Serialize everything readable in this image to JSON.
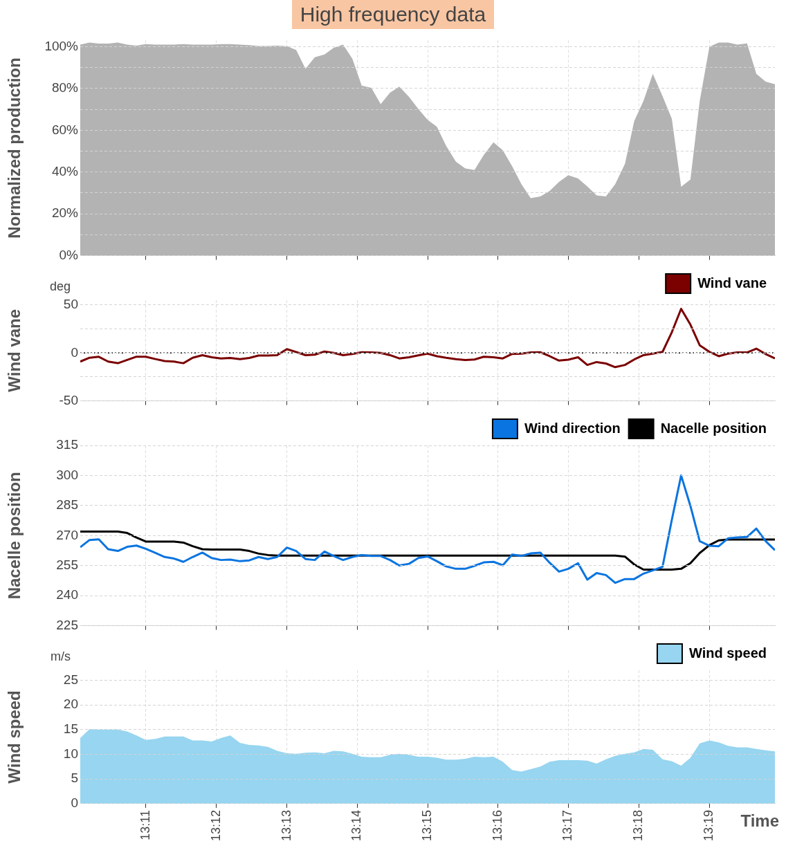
{
  "chart_data": [
    {
      "type": "area",
      "title": "High frequency data",
      "ylabel": "Normalized production",
      "x": [
        13.1678,
        13.17,
        13.1722,
        13.1744,
        13.1767,
        13.1789,
        13.1811,
        13.1833,
        13.1856,
        13.1878,
        13.19,
        13.1922,
        13.1944,
        13.1967,
        13.1989,
        13.2011,
        13.2033,
        13.2056,
        13.2078,
        13.21,
        13.2122,
        13.2144,
        13.2167,
        13.2189,
        13.2211,
        13.2233,
        13.2256,
        13.2278,
        13.23,
        13.2322,
        13.2344,
        13.2367,
        13.2389,
        13.2411,
        13.2433,
        13.2456,
        13.2478,
        13.25,
        13.2522,
        13.2544,
        13.2567,
        13.2589,
        13.2611,
        13.2633,
        13.2656,
        13.2678,
        13.27,
        13.2722,
        13.2744,
        13.2767,
        13.2789,
        13.2811,
        13.2833,
        13.2856,
        13.2878,
        13.29,
        13.2922,
        13.2944,
        13.2967,
        13.2989,
        13.3011,
        13.3033,
        13.3056,
        13.3078,
        13.31,
        13.3122,
        13.3144,
        13.3167,
        13.3189,
        13.3211,
        13.3233,
        13.3256,
        13.3278,
        13.33,
        13.3322
      ],
      "series": [
        {
          "color": "#b3b3b3",
          "values": [
            101,
            102,
            101.5,
            101.5,
            102,
            101,
            100.5,
            101.2,
            101,
            101,
            101,
            101.2,
            101,
            101,
            101,
            101.2,
            101.2,
            101,
            100.7,
            100.3,
            100.3,
            100.5,
            100.2,
            98.4,
            89.4,
            94.9,
            96.3,
            99.5,
            101,
            94.2,
            81.4,
            80.3,
            72.5,
            78,
            80.9,
            76,
            70.2,
            65,
            61.7,
            52.5,
            45,
            41.7,
            41,
            48.2,
            54.2,
            50.4,
            42.8,
            34.2,
            27.5,
            28.3,
            31,
            35.3,
            38.5,
            36.9,
            33.1,
            28.8,
            28.3,
            34.2,
            43.9,
            64.4,
            74.1,
            87,
            76.3,
            65.5,
            33,
            36.4,
            74,
            100,
            102,
            102,
            101,
            101.6,
            87,
            83.3,
            82
          ]
        }
      ],
      "xlim": [
        13.1678,
        13.3322
      ],
      "xticks": [
        {
          "value": 13.1833,
          "label": null
        },
        {
          "value": 13.2,
          "label": null
        },
        {
          "value": 13.2167,
          "label": null
        },
        {
          "value": 13.2333,
          "label": null
        },
        {
          "value": 13.25,
          "label": null
        },
        {
          "value": 13.2667,
          "label": null
        },
        {
          "value": 13.2833,
          "label": null
        },
        {
          "value": 13.3,
          "label": null
        },
        {
          "value": 13.3167,
          "label": null
        }
      ],
      "ylim": [
        0,
        103
      ],
      "yticks": [
        {
          "value": 0,
          "label": "0%"
        },
        {
          "value": 10,
          "label": null
        },
        {
          "value": 20,
          "label": "20%"
        },
        {
          "value": 30,
          "label": null
        },
        {
          "value": 40,
          "label": "40%"
        },
        {
          "value": 50,
          "label": null
        },
        {
          "value": 60,
          "label": "60%"
        },
        {
          "value": 70,
          "label": null
        },
        {
          "value": 80,
          "label": "80%"
        },
        {
          "value": 90,
          "label": null
        },
        {
          "value": 100,
          "label": "100%"
        }
      ],
      "grid": true,
      "tick_labels": "y"
    },
    {
      "type": "line",
      "ylabel": "Wind vane",
      "annotations": [
        "deg"
      ],
      "x": [
        13.1678,
        13.17,
        13.1722,
        13.1744,
        13.1767,
        13.1789,
        13.1811,
        13.1833,
        13.1856,
        13.1878,
        13.19,
        13.1922,
        13.1944,
        13.1967,
        13.1989,
        13.2011,
        13.2033,
        13.2056,
        13.2078,
        13.21,
        13.2122,
        13.2144,
        13.2167,
        13.2189,
        13.2211,
        13.2233,
        13.2256,
        13.2278,
        13.23,
        13.2322,
        13.2344,
        13.2367,
        13.2389,
        13.2411,
        13.2433,
        13.2456,
        13.2478,
        13.25,
        13.2522,
        13.2544,
        13.2567,
        13.2589,
        13.2611,
        13.2633,
        13.2656,
        13.2678,
        13.27,
        13.2722,
        13.2744,
        13.2767,
        13.2789,
        13.2811,
        13.2833,
        13.2856,
        13.2878,
        13.29,
        13.2922,
        13.2944,
        13.2967,
        13.2989,
        13.3011,
        13.3033,
        13.3056,
        13.3078,
        13.31,
        13.3122,
        13.3144,
        13.3167,
        13.3189,
        13.3211,
        13.3233,
        13.3256,
        13.3278,
        13.33,
        13.3322
      ],
      "series": [
        {
          "name": "Wind vane",
          "color": "#7b0000",
          "values": [
            -9,
            -5,
            -4,
            -9,
            -10.7,
            -7.3,
            -3.9,
            -4,
            -6.4,
            -8.4,
            -9,
            -10.7,
            -5,
            -2.3,
            -4.5,
            -5.7,
            -5.2,
            -6.4,
            -5.2,
            -2.7,
            -2.7,
            -2.3,
            4,
            1,
            -2.3,
            -1.8,
            1.5,
            0,
            -2.3,
            -1,
            0.7,
            0.5,
            0,
            -2.3,
            -5.7,
            -4.5,
            -2.5,
            -0.7,
            -3.4,
            -5,
            -6.4,
            -7.3,
            -6.8,
            -4,
            -4.5,
            -5.7,
            -1,
            -0.7,
            0.5,
            0.7,
            -3.4,
            -8,
            -7,
            -4.5,
            -12.5,
            -9.5,
            -11,
            -14.8,
            -12.5,
            -6.8,
            -2.3,
            -0.7,
            1.1,
            21.6,
            46,
            29.5,
            8,
            1.1,
            -3.4,
            -0.7,
            0.5,
            0.5,
            4.5,
            -1.1,
            -5.7
          ]
        }
      ],
      "xlim": [
        13.1678,
        13.3322
      ],
      "xticks": [
        {
          "value": 13.1833,
          "label": null
        },
        {
          "value": 13.2,
          "label": null
        },
        {
          "value": 13.2167,
          "label": null
        },
        {
          "value": 13.2333,
          "label": null
        },
        {
          "value": 13.25,
          "label": null
        },
        {
          "value": 13.2667,
          "label": null
        },
        {
          "value": 13.2833,
          "label": null
        },
        {
          "value": 13.3,
          "label": null
        },
        {
          "value": 13.3167,
          "label": null
        }
      ],
      "ylim": [
        -50,
        55
      ],
      "yticks": [
        -50,
        {
          "value": -25,
          "label": null
        },
        0,
        {
          "value": 25,
          "label": null
        },
        50
      ],
      "ref_lines": [
        {
          "axis": "y",
          "value": 0,
          "color": "#000000",
          "line_style": "dotted"
        }
      ],
      "grid": true,
      "legend": "top right",
      "tick_labels": "y"
    },
    {
      "type": "line",
      "ylabel": "Nacelle position",
      "x": [
        13.1678,
        13.17,
        13.1722,
        13.1744,
        13.1767,
        13.1789,
        13.1811,
        13.1833,
        13.1856,
        13.1878,
        13.19,
        13.1922,
        13.1944,
        13.1967,
        13.1989,
        13.2011,
        13.2033,
        13.2056,
        13.2078,
        13.21,
        13.2122,
        13.2144,
        13.2167,
        13.2189,
        13.2211,
        13.2233,
        13.2256,
        13.2278,
        13.23,
        13.2322,
        13.2344,
        13.2367,
        13.2389,
        13.2411,
        13.2433,
        13.2456,
        13.2478,
        13.25,
        13.2522,
        13.2544,
        13.2567,
        13.2589,
        13.2611,
        13.2633,
        13.2656,
        13.2678,
        13.27,
        13.2722,
        13.2744,
        13.2767,
        13.2789,
        13.2811,
        13.2833,
        13.2856,
        13.2878,
        13.29,
        13.2922,
        13.2944,
        13.2967,
        13.2989,
        13.3011,
        13.3033,
        13.3056,
        13.3078,
        13.31,
        13.3122,
        13.3144,
        13.3167,
        13.3189,
        13.3211,
        13.3233,
        13.3256,
        13.3278,
        13.33,
        13.3322
      ],
      "series": [
        {
          "name": "Wind direction",
          "color": "#0a74e0",
          "values": [
            264.2,
            267.8,
            268.1,
            263.2,
            262.3,
            264.4,
            265,
            263.4,
            261.3,
            259.3,
            258.5,
            256.9,
            259.3,
            261.5,
            258.8,
            257.8,
            258,
            257.2,
            257.6,
            259.3,
            258.3,
            259.3,
            264,
            262.3,
            258.3,
            257.8,
            262,
            259.8,
            257.8,
            259.3,
            260.3,
            259.8,
            259.8,
            257.8,
            255.1,
            255.9,
            258.8,
            259.6,
            257.2,
            254.6,
            253.4,
            253.4,
            254.9,
            256.6,
            256.9,
            255.2,
            260.5,
            259.8,
            261.1,
            261.5,
            256.4,
            252,
            253.4,
            256.2,
            248,
            251.3,
            250.3,
            246.4,
            248.3,
            248.3,
            251,
            252.6,
            254.4,
            277.9,
            300,
            284.8,
            267.2,
            264.9,
            264.7,
            268.6,
            269.1,
            269.3,
            273.5,
            267.2,
            262.7
          ]
        },
        {
          "name": "Nacelle position",
          "color": "#000000",
          "values": [
            272,
            272,
            272,
            272,
            272,
            271.3,
            269,
            267,
            267,
            267,
            267,
            266.5,
            264.7,
            263.2,
            263,
            263,
            263,
            263,
            262.3,
            261,
            260.3,
            260,
            260,
            260,
            260,
            260,
            260,
            260,
            260,
            260,
            260,
            260,
            260,
            260,
            260,
            260,
            260,
            260,
            260,
            260,
            260,
            260,
            260,
            260,
            260,
            260,
            260,
            260,
            260,
            260,
            260,
            260,
            260,
            260,
            260,
            260,
            260,
            260,
            259.5,
            255.6,
            253,
            253,
            253,
            253,
            253.4,
            256.2,
            261.3,
            265.2,
            267.6,
            268,
            268,
            268,
            268,
            268,
            268
          ]
        }
      ],
      "xlim": [
        13.1678,
        13.3322
      ],
      "xticks": [
        {
          "value": 13.1833,
          "label": null
        },
        {
          "value": 13.2,
          "label": null
        },
        {
          "value": 13.2167,
          "label": null
        },
        {
          "value": 13.2333,
          "label": null
        },
        {
          "value": 13.25,
          "label": null
        },
        {
          "value": 13.2667,
          "label": null
        },
        {
          "value": 13.2833,
          "label": null
        },
        {
          "value": 13.3,
          "label": null
        },
        {
          "value": 13.3167,
          "label": null
        }
      ],
      "ylim": [
        225,
        315
      ],
      "yticks": [
        225,
        240,
        255,
        270,
        285,
        300,
        315
      ],
      "grid": true,
      "legend": "top right",
      "tick_labels": "y"
    },
    {
      "type": "area",
      "ylabel": "Wind speed",
      "xlabel": "Time",
      "annotations": [
        "m/s"
      ],
      "x": [
        13.1678,
        13.17,
        13.1722,
        13.1744,
        13.1767,
        13.1789,
        13.1811,
        13.1833,
        13.1856,
        13.1878,
        13.19,
        13.1922,
        13.1944,
        13.1967,
        13.1989,
        13.2011,
        13.2033,
        13.2056,
        13.2078,
        13.21,
        13.2122,
        13.2144,
        13.2167,
        13.2189,
        13.2211,
        13.2233,
        13.2256,
        13.2278,
        13.23,
        13.2322,
        13.2344,
        13.2367,
        13.2389,
        13.2411,
        13.2433,
        13.2456,
        13.2478,
        13.25,
        13.2522,
        13.2544,
        13.2567,
        13.2589,
        13.2611,
        13.2633,
        13.2656,
        13.2678,
        13.27,
        13.2722,
        13.2744,
        13.2767,
        13.2789,
        13.2811,
        13.2833,
        13.2856,
        13.2878,
        13.29,
        13.2922,
        13.2944,
        13.2967,
        13.2989,
        13.3011,
        13.3033,
        13.3056,
        13.3078,
        13.31,
        13.3122,
        13.3144,
        13.3167,
        13.3189,
        13.3211,
        13.3233,
        13.3256,
        13.3278,
        13.33,
        13.3322
      ],
      "series": [
        {
          "name": "Wind speed",
          "color": "#97d5f0",
          "values": [
            13.3,
            15.1,
            15,
            15,
            15,
            14.6,
            13.8,
            12.9,
            13.1,
            13.6,
            13.6,
            13.6,
            12.8,
            12.8,
            12.6,
            13.3,
            13.8,
            12.3,
            11.9,
            11.8,
            11.5,
            10.7,
            10.2,
            10.1,
            10.3,
            10.4,
            10.2,
            10.7,
            10.6,
            10.1,
            9.5,
            9.4,
            9.4,
            9.9,
            10.1,
            9.9,
            9.5,
            9.5,
            9.3,
            8.9,
            8.9,
            9.1,
            9.5,
            9.4,
            9.5,
            8.5,
            6.8,
            6.5,
            7,
            7.5,
            8.5,
            8.8,
            8.8,
            8.8,
            8.7,
            8.1,
            9,
            9.7,
            10.1,
            10.4,
            11.1,
            10.9,
            9,
            8.6,
            7.7,
            9.3,
            12.2,
            12.8,
            12.4,
            11.7,
            11.4,
            11.4,
            11.1,
            10.8,
            10.6
          ]
        }
      ],
      "xlim": [
        13.1678,
        13.3322
      ],
      "xticks": [
        {
          "value": 13.1833,
          "label": "13:11"
        },
        {
          "value": 13.2,
          "label": "13:12"
        },
        {
          "value": 13.2167,
          "label": "13:13"
        },
        {
          "value": 13.2333,
          "label": "13:14"
        },
        {
          "value": 13.25,
          "label": "13:15"
        },
        {
          "value": 13.2667,
          "label": "13:16"
        },
        {
          "value": 13.2833,
          "label": "13:17"
        },
        {
          "value": 13.3,
          "label": "13:18"
        },
        {
          "value": 13.3167,
          "label": "13:19"
        }
      ],
      "ylim": [
        0,
        27
      ],
      "yticks": [
        0,
        5,
        10,
        15,
        20,
        25
      ],
      "grid": true,
      "legend": "top right"
    }
  ]
}
